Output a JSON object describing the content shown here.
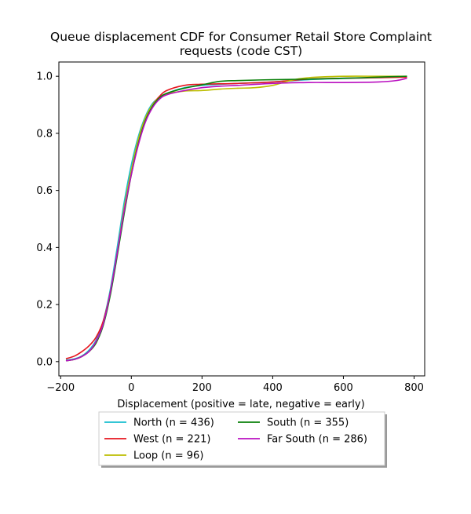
{
  "chart_data": {
    "type": "line",
    "title": "Queue displacement CDF for Consumer Retail Store Complaint requests (code CST)",
    "title_lines": [
      "Queue displacement CDF for Consumer Retail Store Complaint",
      "requests (code CST)"
    ],
    "xlabel": "Displacement (positive = late, negative = early)",
    "ylabel": "",
    "xlim": [
      -205,
      830
    ],
    "ylim": [
      -0.05,
      1.05
    ],
    "xticks": [
      -200,
      0,
      200,
      400,
      600,
      800
    ],
    "xtick_labels": [
      "−200",
      "0",
      "200",
      "400",
      "600",
      "800"
    ],
    "yticks": [
      0.0,
      0.2,
      0.4,
      0.6,
      0.8,
      1.0
    ],
    "ytick_labels": [
      "0.0",
      "0.2",
      "0.4",
      "0.6",
      "0.8",
      "1.0"
    ],
    "grid": false,
    "legend_position": "below the plot, centered, two columns",
    "series": [
      {
        "name": "North (n = 436)",
        "color": "#17becf",
        "points": [
          [
            -185,
            0.005
          ],
          [
            -160,
            0.01
          ],
          [
            -140,
            0.02
          ],
          [
            -120,
            0.04
          ],
          [
            -100,
            0.075
          ],
          [
            -80,
            0.14
          ],
          [
            -60,
            0.25
          ],
          [
            -40,
            0.4
          ],
          [
            -20,
            0.56
          ],
          [
            0,
            0.69
          ],
          [
            20,
            0.79
          ],
          [
            40,
            0.86
          ],
          [
            60,
            0.905
          ],
          [
            80,
            0.925
          ],
          [
            100,
            0.94
          ],
          [
            150,
            0.96
          ],
          [
            200,
            0.968
          ],
          [
            300,
            0.975
          ],
          [
            400,
            0.98
          ],
          [
            500,
            0.988
          ],
          [
            600,
            0.992
          ],
          [
            700,
            0.995
          ],
          [
            780,
            0.999
          ]
        ]
      },
      {
        "name": "West (n = 221)",
        "color": "#e6141e",
        "points": [
          [
            -185,
            0.01
          ],
          [
            -160,
            0.02
          ],
          [
            -140,
            0.035
          ],
          [
            -120,
            0.055
          ],
          [
            -100,
            0.085
          ],
          [
            -80,
            0.14
          ],
          [
            -60,
            0.24
          ],
          [
            -40,
            0.38
          ],
          [
            -20,
            0.53
          ],
          [
            0,
            0.66
          ],
          [
            20,
            0.77
          ],
          [
            40,
            0.85
          ],
          [
            60,
            0.9
          ],
          [
            80,
            0.93
          ],
          [
            100,
            0.95
          ],
          [
            150,
            0.968
          ],
          [
            200,
            0.972
          ],
          [
            300,
            0.975
          ],
          [
            400,
            0.98
          ],
          [
            500,
            0.99
          ],
          [
            600,
            0.993
          ],
          [
            700,
            0.995
          ],
          [
            780,
            0.997
          ]
        ]
      },
      {
        "name": "Loop (n = 96)",
        "color": "#bcbd00",
        "points": [
          [
            -185,
            0.003
          ],
          [
            -160,
            0.008
          ],
          [
            -140,
            0.018
          ],
          [
            -120,
            0.035
          ],
          [
            -100,
            0.065
          ],
          [
            -80,
            0.13
          ],
          [
            -60,
            0.24
          ],
          [
            -40,
            0.38
          ],
          [
            -20,
            0.54
          ],
          [
            0,
            0.67
          ],
          [
            20,
            0.78
          ],
          [
            40,
            0.855
          ],
          [
            60,
            0.9
          ],
          [
            80,
            0.925
          ],
          [
            100,
            0.938
          ],
          [
            150,
            0.948
          ],
          [
            200,
            0.95
          ],
          [
            250,
            0.955
          ],
          [
            300,
            0.958
          ],
          [
            350,
            0.96
          ],
          [
            400,
            0.968
          ],
          [
            450,
            0.985
          ],
          [
            500,
            0.995
          ],
          [
            600,
            1.0
          ],
          [
            700,
            1.0
          ],
          [
            780,
            1.0
          ]
        ]
      },
      {
        "name": "South (n = 355)",
        "color": "#0a800a",
        "points": [
          [
            -185,
            0.003
          ],
          [
            -160,
            0.008
          ],
          [
            -140,
            0.018
          ],
          [
            -120,
            0.035
          ],
          [
            -100,
            0.065
          ],
          [
            -80,
            0.125
          ],
          [
            -60,
            0.23
          ],
          [
            -40,
            0.37
          ],
          [
            -20,
            0.52
          ],
          [
            0,
            0.655
          ],
          [
            20,
            0.765
          ],
          [
            40,
            0.845
          ],
          [
            60,
            0.895
          ],
          [
            80,
            0.925
          ],
          [
            100,
            0.94
          ],
          [
            150,
            0.958
          ],
          [
            200,
            0.97
          ],
          [
            250,
            0.982
          ],
          [
            300,
            0.985
          ],
          [
            400,
            0.988
          ],
          [
            500,
            0.99
          ],
          [
            600,
            0.993
          ],
          [
            700,
            0.997
          ],
          [
            780,
            1.0
          ]
        ]
      },
      {
        "name": "Far South (n = 286)",
        "color": "#b90fc0",
        "points": [
          [
            -185,
            0.003
          ],
          [
            -160,
            0.008
          ],
          [
            -140,
            0.018
          ],
          [
            -120,
            0.035
          ],
          [
            -100,
            0.07
          ],
          [
            -80,
            0.13
          ],
          [
            -60,
            0.24
          ],
          [
            -40,
            0.38
          ],
          [
            -20,
            0.53
          ],
          [
            0,
            0.655
          ],
          [
            20,
            0.76
          ],
          [
            40,
            0.84
          ],
          [
            60,
            0.89
          ],
          [
            80,
            0.92
          ],
          [
            100,
            0.935
          ],
          [
            150,
            0.95
          ],
          [
            200,
            0.96
          ],
          [
            250,
            0.965
          ],
          [
            300,
            0.968
          ],
          [
            400,
            0.975
          ],
          [
            500,
            0.978
          ],
          [
            600,
            0.978
          ],
          [
            700,
            0.98
          ],
          [
            750,
            0.985
          ],
          [
            780,
            0.993
          ]
        ]
      }
    ]
  }
}
